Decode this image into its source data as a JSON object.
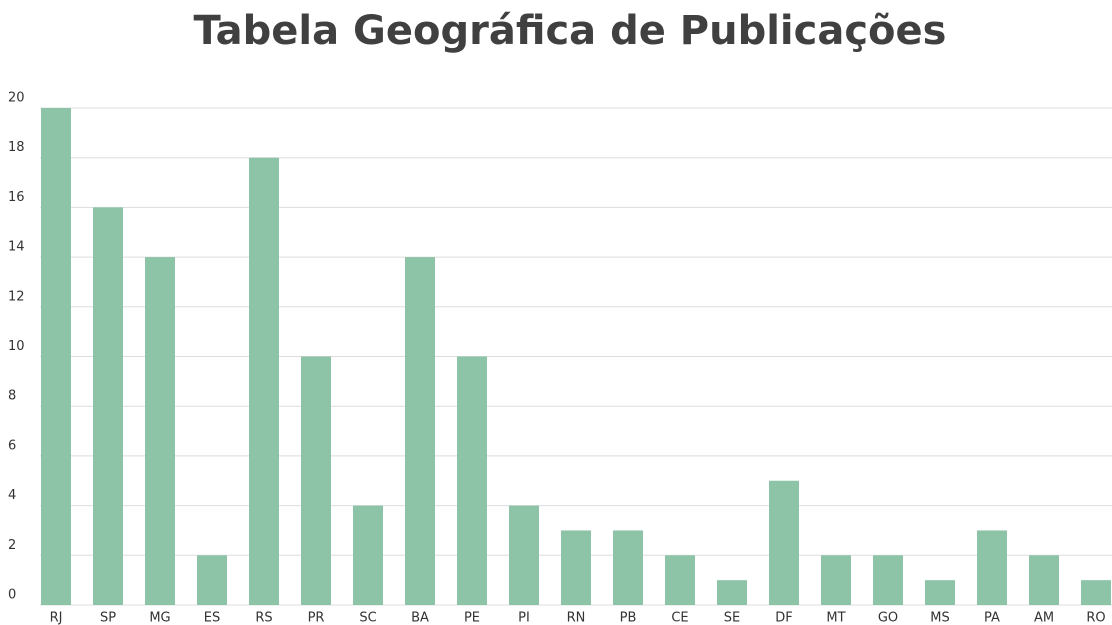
{
  "chart_data": {
    "type": "bar",
    "title": "Tabela Geográfica de Publicações",
    "categories": [
      "RJ",
      "SP",
      "MG",
      "ES",
      "RS",
      "PR",
      "SC",
      "BA",
      "PE",
      "PI",
      "RN",
      "PB",
      "CE",
      "SE",
      "DF",
      "MT",
      "GO",
      "MS",
      "PA",
      "AM",
      "RO"
    ],
    "values": [
      20,
      16,
      14,
      2,
      18,
      10,
      4,
      14,
      10,
      4,
      3,
      3,
      2,
      1,
      5,
      2,
      2,
      1,
      3,
      2,
      1
    ],
    "color": "#8dc3a7",
    "ylim": [
      0,
      20
    ],
    "yticks": [
      0,
      2,
      4,
      6,
      8,
      10,
      12,
      14,
      16,
      18,
      20
    ],
    "grid": true
  }
}
